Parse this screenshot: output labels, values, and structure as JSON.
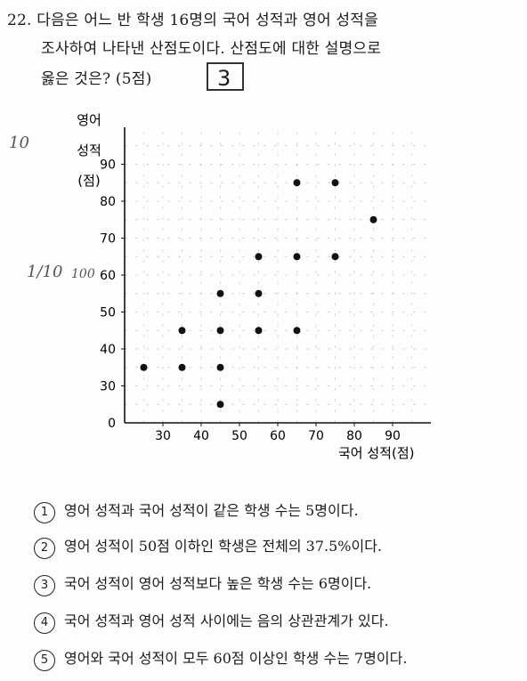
{
  "question": {
    "number": "22.",
    "line1": "다음은 어느 반 학생 16명의 국어 성적과 영어 성적을",
    "line2": "조사하여 나타낸 산점도이다. 산점도에 대한 설명으로",
    "line3": "옳은 것은? (5점)",
    "handwritten_answer": "3"
  },
  "chart_data": {
    "type": "scatter",
    "xlabel": "국어 성적(점)",
    "ylabel": "영어 성적(점)",
    "x_ticks": [
      "30",
      "40",
      "50",
      "60",
      "70",
      "80",
      "90"
    ],
    "y_ticks": [
      "30",
      "40",
      "50",
      "60",
      "70",
      "80",
      "90"
    ],
    "origin_label": "0",
    "xlim": [
      20,
      100
    ],
    "ylim": [
      20,
      100
    ],
    "grid": true,
    "points": [
      {
        "x": 25,
        "y": 35
      },
      {
        "x": 35,
        "y": 35
      },
      {
        "x": 45,
        "y": 35
      },
      {
        "x": 45,
        "y": 25
      },
      {
        "x": 35,
        "y": 45
      },
      {
        "x": 45,
        "y": 45
      },
      {
        "x": 55,
        "y": 45
      },
      {
        "x": 65,
        "y": 45
      },
      {
        "x": 45,
        "y": 55
      },
      {
        "x": 55,
        "y": 55
      },
      {
        "x": 55,
        "y": 65
      },
      {
        "x": 65,
        "y": 65
      },
      {
        "x": 75,
        "y": 65
      },
      {
        "x": 85,
        "y": 75
      },
      {
        "x": 65,
        "y": 85
      },
      {
        "x": 75,
        "y": 85
      }
    ]
  },
  "options": [
    {
      "num": "①",
      "text": "영어 성적과 국어 성적이 같은 학생 수는 5명이다."
    },
    {
      "num": "②",
      "text": "영어 성적이 50점 이하인 학생은 전체의 37.5%이다."
    },
    {
      "num": "③",
      "text": "국어 성적이 영어 성적보다 높은 학생 수는 6명이다."
    },
    {
      "num": "④",
      "text": "국어 성적과 영어 성적 사이에는 음의 상관관계가 있다."
    },
    {
      "num": "⑤",
      "text": "영어와 국어 성적이 모두 60점 이상인 학생 수는 7명이다."
    }
  ],
  "handwriting": {
    "left_fraction": "1/10",
    "left_note": "100",
    "top_note": "10"
  }
}
